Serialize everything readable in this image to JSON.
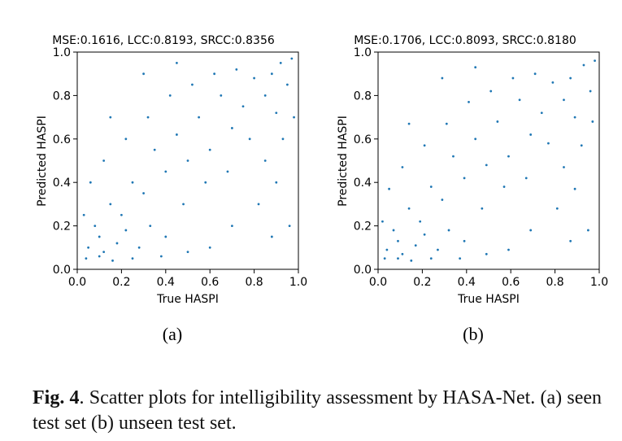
{
  "chart_data": [
    {
      "type": "scatter",
      "title": "MSE:0.1616, LCC:0.8193, SRCC:0.8356",
      "xlabel": "True HASPI",
      "ylabel": "Predicted HASPI",
      "xlim": [
        0.0,
        1.0
      ],
      "ylim": [
        0.0,
        1.0
      ],
      "xticks": [
        "0.0",
        "0.2",
        "0.4",
        "0.6",
        "0.8",
        "1.0"
      ],
      "yticks": [
        "0.0",
        "0.2",
        "0.4",
        "0.6",
        "0.8",
        "1.0"
      ],
      "sublabel": "(a)",
      "color": "#1f77b4",
      "grid": false,
      "series": [
        {
          "values": [
            [
              0.92,
              0.95
            ],
            [
              0.88,
              0.9
            ],
            [
              0.95,
              0.85
            ],
            [
              0.85,
              0.8
            ],
            [
              0.97,
              0.97
            ],
            [
              0.9,
              0.72
            ],
            [
              0.8,
              0.88
            ],
            [
              0.75,
              0.75
            ],
            [
              0.7,
              0.65
            ],
            [
              0.65,
              0.8
            ],
            [
              0.6,
              0.55
            ],
            [
              0.55,
              0.7
            ],
            [
              0.5,
              0.5
            ],
            [
              0.45,
              0.62
            ],
            [
              0.4,
              0.45
            ],
            [
              0.35,
              0.55
            ],
            [
              0.3,
              0.35
            ],
            [
              0.25,
              0.4
            ],
            [
              0.2,
              0.25
            ],
            [
              0.15,
              0.3
            ],
            [
              0.1,
              0.15
            ],
            [
              0.05,
              0.1
            ],
            [
              0.08,
              0.2
            ],
            [
              0.12,
              0.08
            ],
            [
              0.18,
              0.12
            ],
            [
              0.03,
              0.25
            ],
            [
              0.22,
              0.18
            ],
            [
              0.28,
              0.1
            ],
            [
              0.33,
              0.2
            ],
            [
              0.4,
              0.15
            ],
            [
              0.48,
              0.3
            ],
            [
              0.58,
              0.4
            ],
            [
              0.68,
              0.45
            ],
            [
              0.78,
              0.6
            ],
            [
              0.85,
              0.5
            ],
            [
              0.93,
              0.6
            ],
            [
              0.98,
              0.7
            ],
            [
              0.72,
              0.92
            ],
            [
              0.62,
              0.9
            ],
            [
              0.52,
              0.85
            ],
            [
              0.42,
              0.8
            ],
            [
              0.32,
              0.7
            ],
            [
              0.22,
              0.6
            ],
            [
              0.12,
              0.5
            ],
            [
              0.06,
              0.4
            ],
            [
              0.15,
              0.7
            ],
            [
              0.3,
              0.9
            ],
            [
              0.45,
              0.95
            ],
            [
              0.82,
              0.3
            ],
            [
              0.9,
              0.4
            ],
            [
              0.96,
              0.2
            ],
            [
              0.88,
              0.15
            ],
            [
              0.7,
              0.2
            ],
            [
              0.6,
              0.1
            ],
            [
              0.5,
              0.08
            ],
            [
              0.38,
              0.06
            ],
            [
              0.25,
              0.05
            ],
            [
              0.1,
              0.06
            ],
            [
              0.04,
              0.05
            ],
            [
              0.16,
              0.04
            ]
          ]
        }
      ]
    },
    {
      "type": "scatter",
      "title": "MSE:0.1706, LCC:0.8093, SRCC:0.8180",
      "xlabel": "True HASPI",
      "ylabel": "Predicted HASPI",
      "xlim": [
        0.0,
        1.0
      ],
      "ylim": [
        0.0,
        1.0
      ],
      "xticks": [
        "0.0",
        "0.2",
        "0.4",
        "0.6",
        "0.8",
        "1.0"
      ],
      "yticks": [
        "0.0",
        "0.2",
        "0.4",
        "0.6",
        "0.8",
        "1.0"
      ],
      "sublabel": "(b)",
      "color": "#1f77b4",
      "grid": false,
      "series": [
        {
          "values": [
            [
              0.93,
              0.94
            ],
            [
              0.87,
              0.88
            ],
            [
              0.96,
              0.82
            ],
            [
              0.84,
              0.78
            ],
            [
              0.98,
              0.96
            ],
            [
              0.89,
              0.7
            ],
            [
              0.79,
              0.86
            ],
            [
              0.74,
              0.72
            ],
            [
              0.69,
              0.62
            ],
            [
              0.64,
              0.78
            ],
            [
              0.59,
              0.52
            ],
            [
              0.54,
              0.68
            ],
            [
              0.49,
              0.48
            ],
            [
              0.44,
              0.6
            ],
            [
              0.39,
              0.42
            ],
            [
              0.34,
              0.52
            ],
            [
              0.29,
              0.32
            ],
            [
              0.24,
              0.38
            ],
            [
              0.19,
              0.22
            ],
            [
              0.14,
              0.28
            ],
            [
              0.09,
              0.13
            ],
            [
              0.04,
              0.09
            ],
            [
              0.07,
              0.18
            ],
            [
              0.11,
              0.07
            ],
            [
              0.17,
              0.11
            ],
            [
              0.02,
              0.22
            ],
            [
              0.21,
              0.16
            ],
            [
              0.27,
              0.09
            ],
            [
              0.32,
              0.18
            ],
            [
              0.39,
              0.13
            ],
            [
              0.47,
              0.28
            ],
            [
              0.57,
              0.38
            ],
            [
              0.67,
              0.42
            ],
            [
              0.77,
              0.58
            ],
            [
              0.84,
              0.47
            ],
            [
              0.92,
              0.57
            ],
            [
              0.97,
              0.68
            ],
            [
              0.71,
              0.9
            ],
            [
              0.61,
              0.88
            ],
            [
              0.51,
              0.82
            ],
            [
              0.41,
              0.77
            ],
            [
              0.31,
              0.67
            ],
            [
              0.21,
              0.57
            ],
            [
              0.11,
              0.47
            ],
            [
              0.05,
              0.37
            ],
            [
              0.14,
              0.67
            ],
            [
              0.29,
              0.88
            ],
            [
              0.44,
              0.93
            ],
            [
              0.81,
              0.28
            ],
            [
              0.89,
              0.37
            ],
            [
              0.95,
              0.18
            ],
            [
              0.87,
              0.13
            ],
            [
              0.69,
              0.18
            ],
            [
              0.59,
              0.09
            ],
            [
              0.49,
              0.07
            ],
            [
              0.37,
              0.05
            ],
            [
              0.24,
              0.05
            ],
            [
              0.09,
              0.05
            ],
            [
              0.03,
              0.05
            ],
            [
              0.15,
              0.04
            ]
          ]
        }
      ]
    }
  ],
  "caption": {
    "label": "Fig. 4",
    "text": ". Scatter plots for intelligibility assessment by HASA-Net. (a) seen test set (b) unseen test set."
  }
}
